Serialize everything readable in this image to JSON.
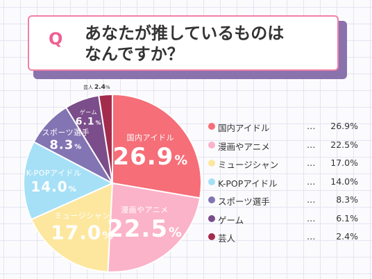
{
  "question": {
    "mark": "Q",
    "line1": "あなたが推しているものは",
    "line2": "なんですか？"
  },
  "legend": {
    "separator": "…"
  },
  "colors": {
    "title_accent": "#ef5f92",
    "title_border": "#f27fa6",
    "title_shadow": "#8a72ad"
  },
  "chart_data": {
    "type": "pie",
    "unit": "%",
    "slices": [
      {
        "label": "国内アイドル",
        "value": 26.9,
        "value_text": "26.9",
        "legend_value": "26.9%",
        "color": "#f56e78"
      },
      {
        "label": "漫画やアニメ",
        "value": 22.5,
        "value_text": "22.5",
        "legend_value": "22.5%",
        "color": "#fbb3c9"
      },
      {
        "label": "ミュージシャン",
        "value": 17.0,
        "value_text": "17.0",
        "legend_value": "17.0%",
        "color": "#fde79f"
      },
      {
        "label": "K-POPアイドル",
        "value": 14.0,
        "value_text": "14.0",
        "legend_value": "14.0%",
        "color": "#a6e0f6"
      },
      {
        "label": "スポーツ選手",
        "value": 8.3,
        "value_text": "8.3",
        "legend_value": "8.3%",
        "color": "#8374b3"
      },
      {
        "label": "ゲーム",
        "value": 6.1,
        "value_text": "6.1",
        "legend_value": "6.1%",
        "color": "#7b4d8a"
      },
      {
        "label": "芸人",
        "value": 2.4,
        "value_text": "2.4",
        "legend_value": "2.4%",
        "color": "#a32c4c"
      }
    ]
  }
}
